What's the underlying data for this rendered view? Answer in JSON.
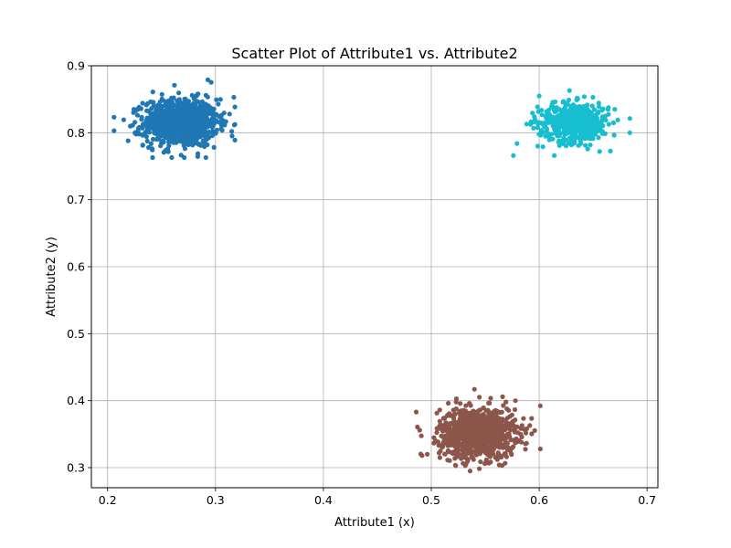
{
  "chart_data": {
    "type": "scatter",
    "title": "Scatter Plot of Attribute1 vs. Attribute2",
    "xlabel": "Attribute1 (x)",
    "ylabel": "Attribute2 (y)",
    "xlim": [
      0.185,
      0.71
    ],
    "ylim": [
      0.27,
      0.9
    ],
    "xticks": [
      0.2,
      0.3,
      0.4,
      0.5,
      0.6,
      0.7
    ],
    "yticks": [
      0.3,
      0.4,
      0.5,
      0.6,
      0.7,
      0.8,
      0.9
    ],
    "xtick_labels": [
      "0.2",
      "0.3",
      "0.4",
      "0.5",
      "0.6",
      "0.7"
    ],
    "ytick_labels": [
      "0.3",
      "0.4",
      "0.5",
      "0.6",
      "0.7",
      "0.8",
      "0.9"
    ],
    "grid": true,
    "legend": "none",
    "series": [
      {
        "color": "#1f77b4",
        "center": [
          0.268,
          0.815
        ],
        "x_range": [
          0.206,
          0.318
        ],
        "y_range": [
          0.763,
          0.879
        ],
        "n_points": 1000,
        "points": [
          [
            0.206,
            0.803
          ],
          [
            0.318,
            0.789
          ],
          [
            0.262,
            0.871
          ],
          [
            0.293,
            0.879
          ],
          [
            0.271,
            0.763
          ],
          [
            0.253,
            0.772
          ],
          [
            0.219,
            0.788
          ],
          [
            0.317,
            0.853
          ],
          [
            0.313,
            0.828
          ],
          [
            0.242,
            0.861
          ],
          [
            0.224,
            0.83
          ]
        ]
      },
      {
        "color": "#17becf",
        "center": [
          0.632,
          0.815
        ],
        "x_range": [
          0.576,
          0.684
        ],
        "y_range": [
          0.766,
          0.863
        ],
        "n_points": 500,
        "points": [
          [
            0.576,
            0.766
          ],
          [
            0.684,
            0.8
          ],
          [
            0.628,
            0.863
          ],
          [
            0.614,
            0.766
          ],
          [
            0.6,
            0.855
          ],
          [
            0.67,
            0.835
          ],
          [
            0.656,
            0.772
          ]
        ]
      },
      {
        "color": "#8c564b",
        "center": [
          0.543,
          0.352
        ],
        "x_range": [
          0.486,
          0.601
        ],
        "y_range": [
          0.295,
          0.417
        ],
        "n_points": 1000,
        "points": [
          [
            0.486,
            0.383
          ],
          [
            0.601,
            0.328
          ],
          [
            0.54,
            0.417
          ],
          [
            0.536,
            0.295
          ],
          [
            0.508,
            0.315
          ],
          [
            0.578,
            0.4
          ]
        ]
      }
    ]
  }
}
